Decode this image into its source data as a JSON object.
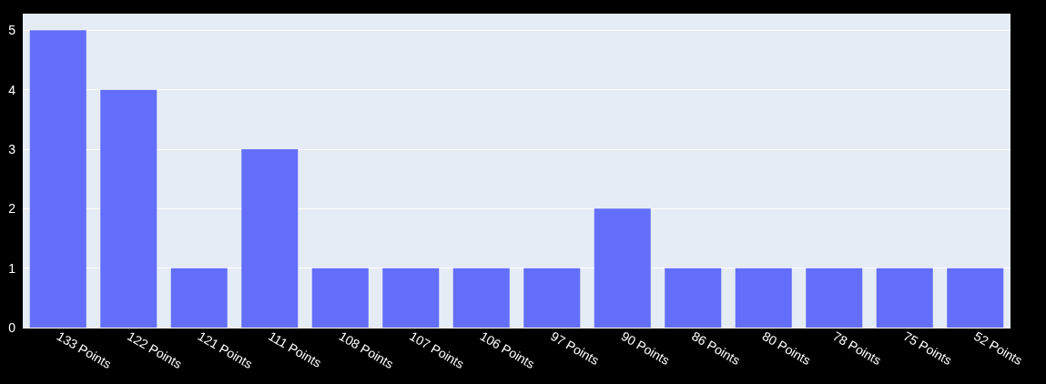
{
  "chart_data": {
    "type": "bar",
    "categories": [
      "133 Points",
      "122 Points",
      "121 Points",
      "111 Points",
      "108 Points",
      "107 Points",
      "106 Points",
      "97 Points",
      "90 Points",
      "86 Points",
      "80 Points",
      "78 Points",
      "75 Points",
      "52 Points"
    ],
    "values": [
      5,
      4,
      1,
      3,
      1,
      1,
      1,
      1,
      2,
      1,
      1,
      1,
      1,
      1
    ],
    "color": "#636efa",
    "ylim": [
      0,
      5.28
    ],
    "yticks": [
      0,
      1,
      2,
      3,
      4,
      5
    ],
    "grid": "y"
  }
}
